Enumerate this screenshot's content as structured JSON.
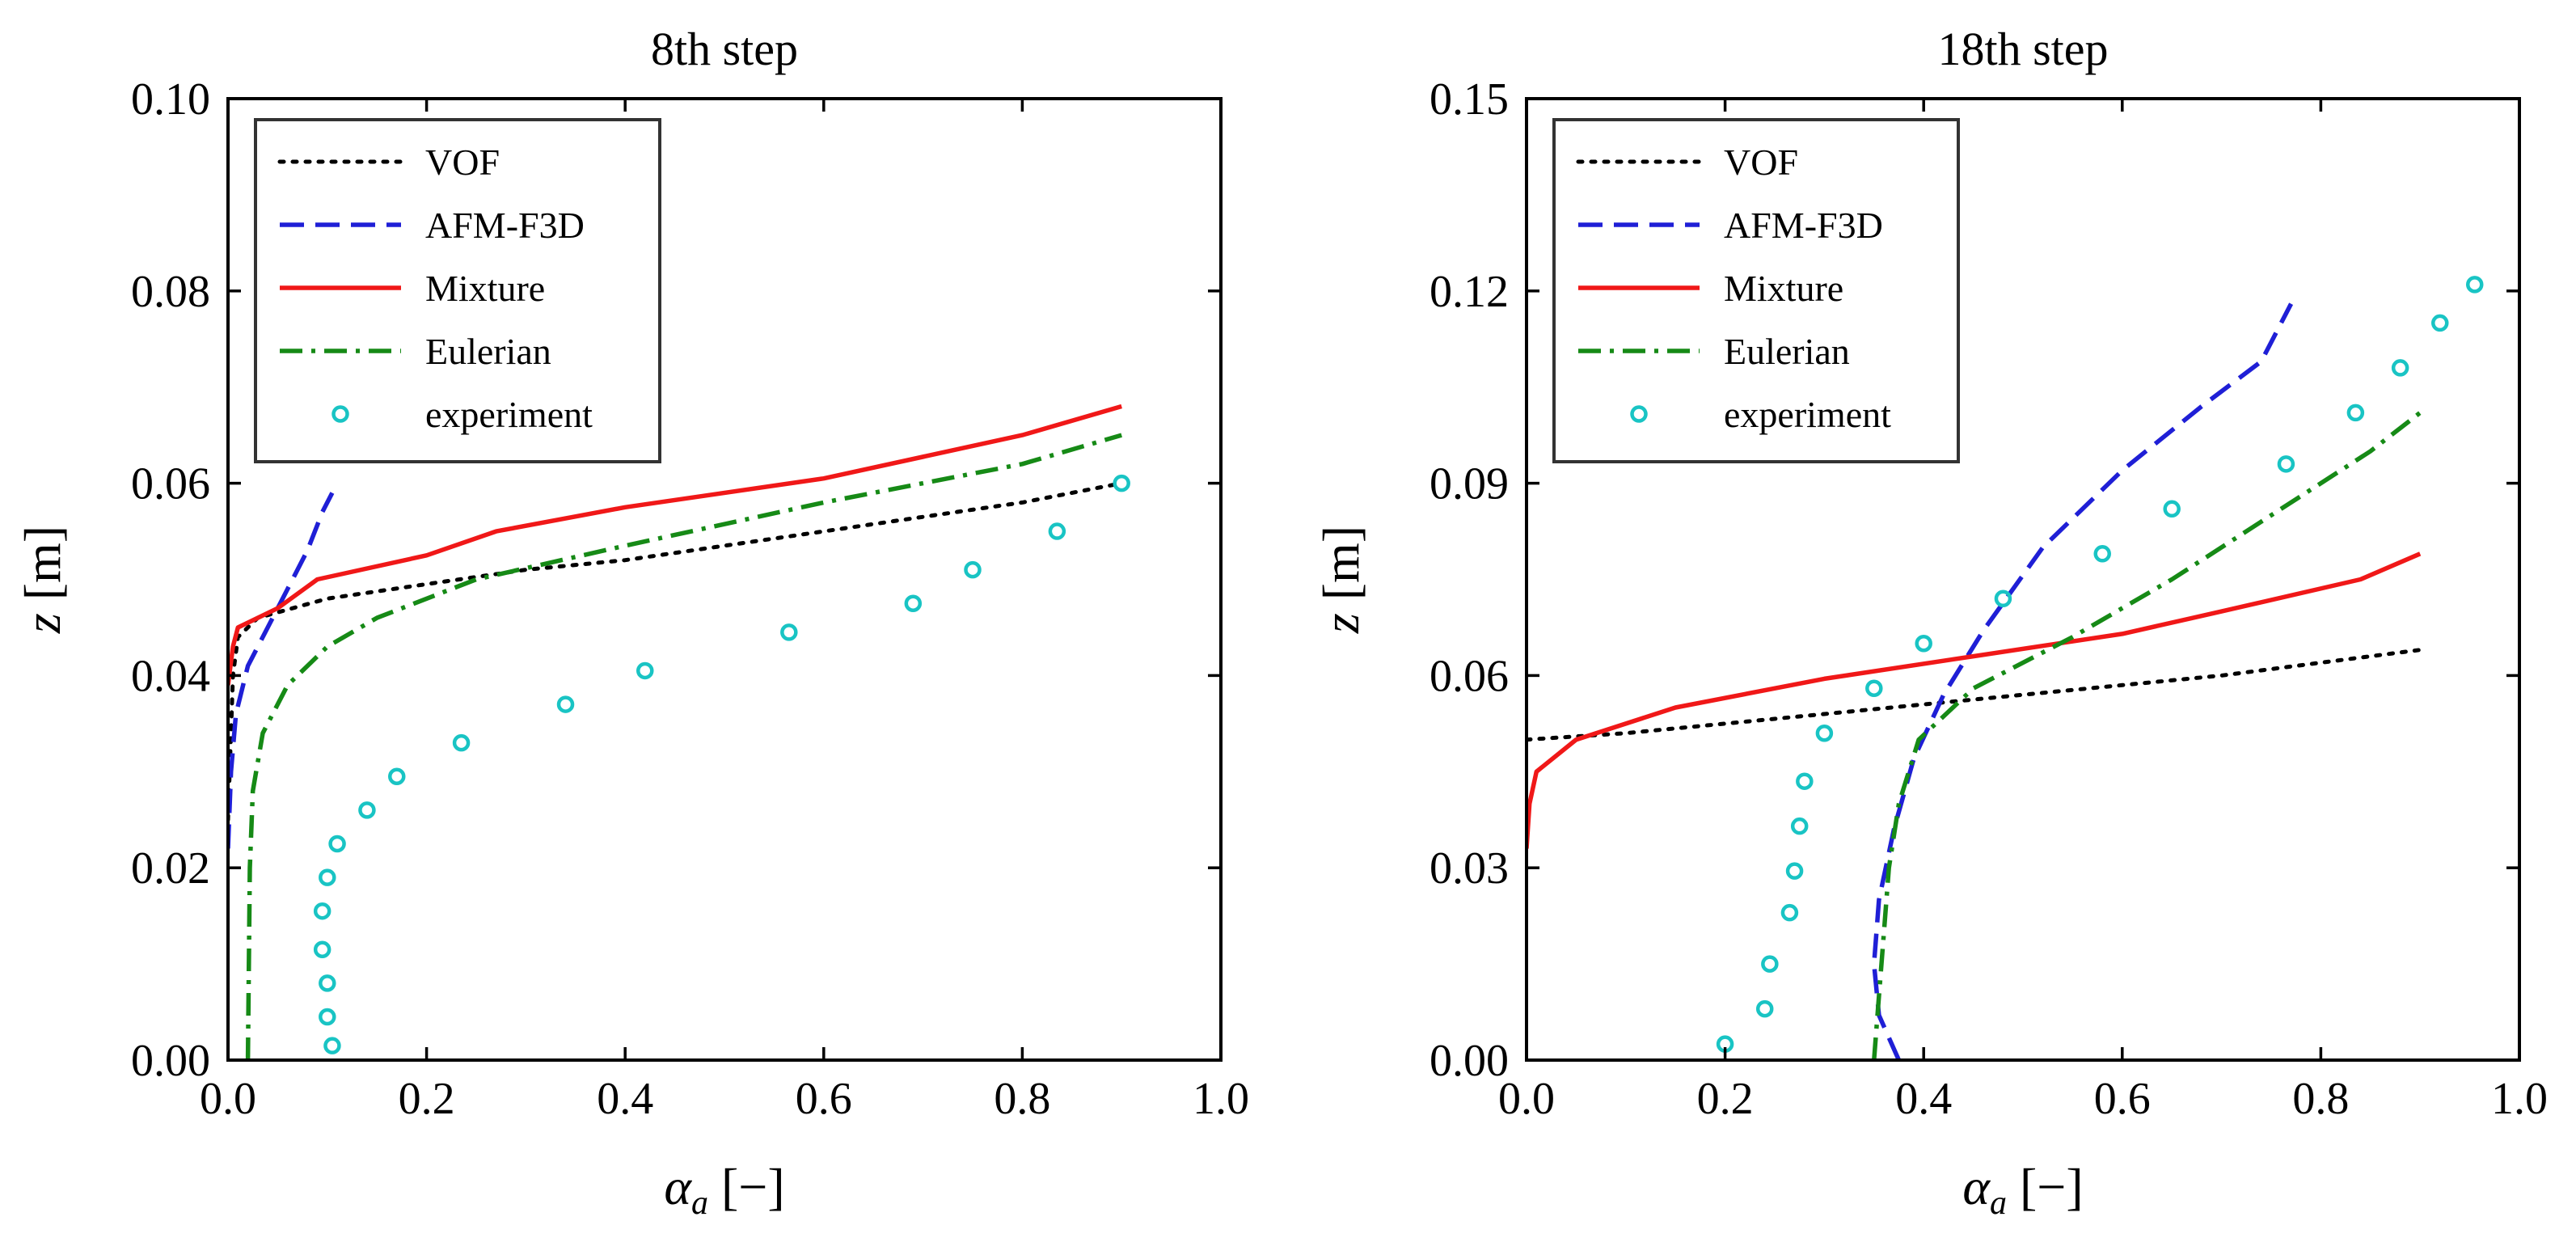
{
  "chart_data": [
    {
      "type": "line",
      "title": "8th step",
      "xlabel_symbol": "α",
      "xlabel_sub": "a",
      "xlabel_unit": " [−]",
      "ylabel_symbol": "z",
      "ylabel_unit": " [m]",
      "xlim": [
        0.0,
        1.0
      ],
      "ylim": [
        0.0,
        0.1
      ],
      "xticks": [
        0.0,
        0.2,
        0.4,
        0.6,
        0.8,
        1.0
      ],
      "yticks": [
        0.0,
        0.02,
        0.04,
        0.06,
        0.08,
        0.1
      ],
      "xtick_labels": [
        "0.0",
        "0.2",
        "0.4",
        "0.6",
        "0.8",
        "1.0"
      ],
      "ytick_labels": [
        "0.00",
        "0.02",
        "0.04",
        "0.06",
        "0.08",
        "0.10"
      ],
      "legend_position": "top-left",
      "series": [
        {
          "name": "VOF",
          "style": "dotted",
          "color": "#000000",
          "points": [
            [
              0.0,
              0.025
            ],
            [
              0.005,
              0.04
            ],
            [
              0.01,
              0.044
            ],
            [
              0.03,
              0.046
            ],
            [
              0.1,
              0.048
            ],
            [
              0.2,
              0.0495
            ],
            [
              0.3,
              0.051
            ],
            [
              0.4,
              0.052
            ],
            [
              0.5,
              0.0535
            ],
            [
              0.6,
              0.055
            ],
            [
              0.7,
              0.0565
            ],
            [
              0.8,
              0.058
            ],
            [
              0.9,
              0.06
            ]
          ]
        },
        {
          "name": "AFM-F3D",
          "style": "dashed",
          "color": "#1f1fd6",
          "points": [
            [
              0.0,
              0.022
            ],
            [
              0.003,
              0.03
            ],
            [
              0.008,
              0.036
            ],
            [
              0.02,
              0.041
            ],
            [
              0.04,
              0.045
            ],
            [
              0.06,
              0.049
            ],
            [
              0.08,
              0.053
            ],
            [
              0.095,
              0.057
            ],
            [
              0.105,
              0.059
            ]
          ]
        },
        {
          "name": "Mixture",
          "style": "solid",
          "color": "#f01818",
          "points": [
            [
              0.0,
              0.039
            ],
            [
              0.005,
              0.043
            ],
            [
              0.01,
              0.045
            ],
            [
              0.05,
              0.047
            ],
            [
              0.09,
              0.05
            ],
            [
              0.2,
              0.0525
            ],
            [
              0.27,
              0.055
            ],
            [
              0.4,
              0.0575
            ],
            [
              0.6,
              0.0605
            ],
            [
              0.8,
              0.065
            ],
            [
              0.9,
              0.068
            ]
          ]
        },
        {
          "name": "Eulerian",
          "style": "dashdot",
          "color": "#168a16",
          "points": [
            [
              0.02,
              0.0
            ],
            [
              0.021,
              0.01
            ],
            [
              0.022,
              0.02
            ],
            [
              0.025,
              0.028
            ],
            [
              0.035,
              0.034
            ],
            [
              0.06,
              0.039
            ],
            [
              0.1,
              0.043
            ],
            [
              0.15,
              0.046
            ],
            [
              0.25,
              0.05
            ],
            [
              0.4,
              0.0535
            ],
            [
              0.6,
              0.058
            ],
            [
              0.8,
              0.062
            ],
            [
              0.9,
              0.065
            ]
          ]
        },
        {
          "name": "experiment",
          "style": "marker",
          "color": "#19c4c4",
          "points": [
            [
              0.105,
              0.0015
            ],
            [
              0.1,
              0.0045
            ],
            [
              0.1,
              0.008
            ],
            [
              0.095,
              0.0115
            ],
            [
              0.095,
              0.0155
            ],
            [
              0.1,
              0.019
            ],
            [
              0.11,
              0.0225
            ],
            [
              0.14,
              0.026
            ],
            [
              0.17,
              0.0295
            ],
            [
              0.235,
              0.033
            ],
            [
              0.34,
              0.037
            ],
            [
              0.42,
              0.0405
            ],
            [
              0.565,
              0.0445
            ],
            [
              0.69,
              0.0475
            ],
            [
              0.75,
              0.051
            ],
            [
              0.835,
              0.055
            ],
            [
              0.9,
              0.06
            ]
          ]
        }
      ]
    },
    {
      "type": "line",
      "title": "18th step",
      "xlabel_symbol": "α",
      "xlabel_sub": "a",
      "xlabel_unit": " [−]",
      "ylabel_symbol": "z",
      "ylabel_unit": " [m]",
      "xlim": [
        0.0,
        1.0
      ],
      "ylim": [
        0.0,
        0.15
      ],
      "xticks": [
        0.0,
        0.2,
        0.4,
        0.6,
        0.8,
        1.0
      ],
      "yticks": [
        0.0,
        0.03,
        0.06,
        0.09,
        0.12,
        0.15
      ],
      "xtick_labels": [
        "0.0",
        "0.2",
        "0.4",
        "0.6",
        "0.8",
        "1.0"
      ],
      "ytick_labels": [
        "0.00",
        "0.03",
        "0.06",
        "0.09",
        "0.12",
        "0.15"
      ],
      "legend_position": "top-left",
      "series": [
        {
          "name": "VOF",
          "style": "dotted",
          "color": "#000000",
          "points": [
            [
              0.0,
              0.05
            ],
            [
              0.1,
              0.051
            ],
            [
              0.2,
              0.0525
            ],
            [
              0.3,
              0.054
            ],
            [
              0.4,
              0.0555
            ],
            [
              0.5,
              0.057
            ],
            [
              0.6,
              0.0585
            ],
            [
              0.7,
              0.06
            ],
            [
              0.8,
              0.062
            ],
            [
              0.9,
              0.064
            ]
          ]
        },
        {
          "name": "AFM-F3D",
          "style": "dashed",
          "color": "#1f1fd6",
          "points": [
            [
              0.375,
              0.0
            ],
            [
              0.355,
              0.007
            ],
            [
              0.35,
              0.015
            ],
            [
              0.355,
              0.025
            ],
            [
              0.37,
              0.036
            ],
            [
              0.39,
              0.047
            ],
            [
              0.42,
              0.057
            ],
            [
              0.46,
              0.067
            ],
            [
              0.52,
              0.08
            ],
            [
              0.6,
              0.092
            ],
            [
              0.68,
              0.102
            ],
            [
              0.74,
              0.109
            ],
            [
              0.77,
              0.118
            ]
          ]
        },
        {
          "name": "Mixture",
          "style": "solid",
          "color": "#f01818",
          "points": [
            [
              0.0,
              0.033
            ],
            [
              0.003,
              0.04
            ],
            [
              0.01,
              0.045
            ],
            [
              0.05,
              0.05
            ],
            [
              0.15,
              0.055
            ],
            [
              0.3,
              0.0595
            ],
            [
              0.45,
              0.063
            ],
            [
              0.6,
              0.0665
            ],
            [
              0.7,
              0.07
            ],
            [
              0.84,
              0.075
            ],
            [
              0.9,
              0.079
            ]
          ]
        },
        {
          "name": "Eulerian",
          "style": "dashdot",
          "color": "#168a16",
          "points": [
            [
              0.35,
              0.0
            ],
            [
              0.355,
              0.01
            ],
            [
              0.36,
              0.02
            ],
            [
              0.365,
              0.03
            ],
            [
              0.375,
              0.04
            ],
            [
              0.395,
              0.05
            ],
            [
              0.45,
              0.058
            ],
            [
              0.55,
              0.066
            ],
            [
              0.65,
              0.075
            ],
            [
              0.75,
              0.085
            ],
            [
              0.85,
              0.095
            ],
            [
              0.9,
              0.101
            ]
          ]
        },
        {
          "name": "experiment",
          "style": "marker",
          "color": "#19c4c4",
          "points": [
            [
              0.2,
              0.0025
            ],
            [
              0.24,
              0.008
            ],
            [
              0.245,
              0.015
            ],
            [
              0.265,
              0.023
            ],
            [
              0.27,
              0.0295
            ],
            [
              0.275,
              0.0365
            ],
            [
              0.28,
              0.0435
            ],
            [
              0.3,
              0.051
            ],
            [
              0.35,
              0.058
            ],
            [
              0.4,
              0.065
            ],
            [
              0.48,
              0.072
            ],
            [
              0.58,
              0.079
            ],
            [
              0.65,
              0.086
            ],
            [
              0.765,
              0.093
            ],
            [
              0.835,
              0.101
            ],
            [
              0.88,
              0.108
            ],
            [
              0.92,
              0.115
            ],
            [
              0.955,
              0.121
            ]
          ]
        }
      ]
    }
  ]
}
